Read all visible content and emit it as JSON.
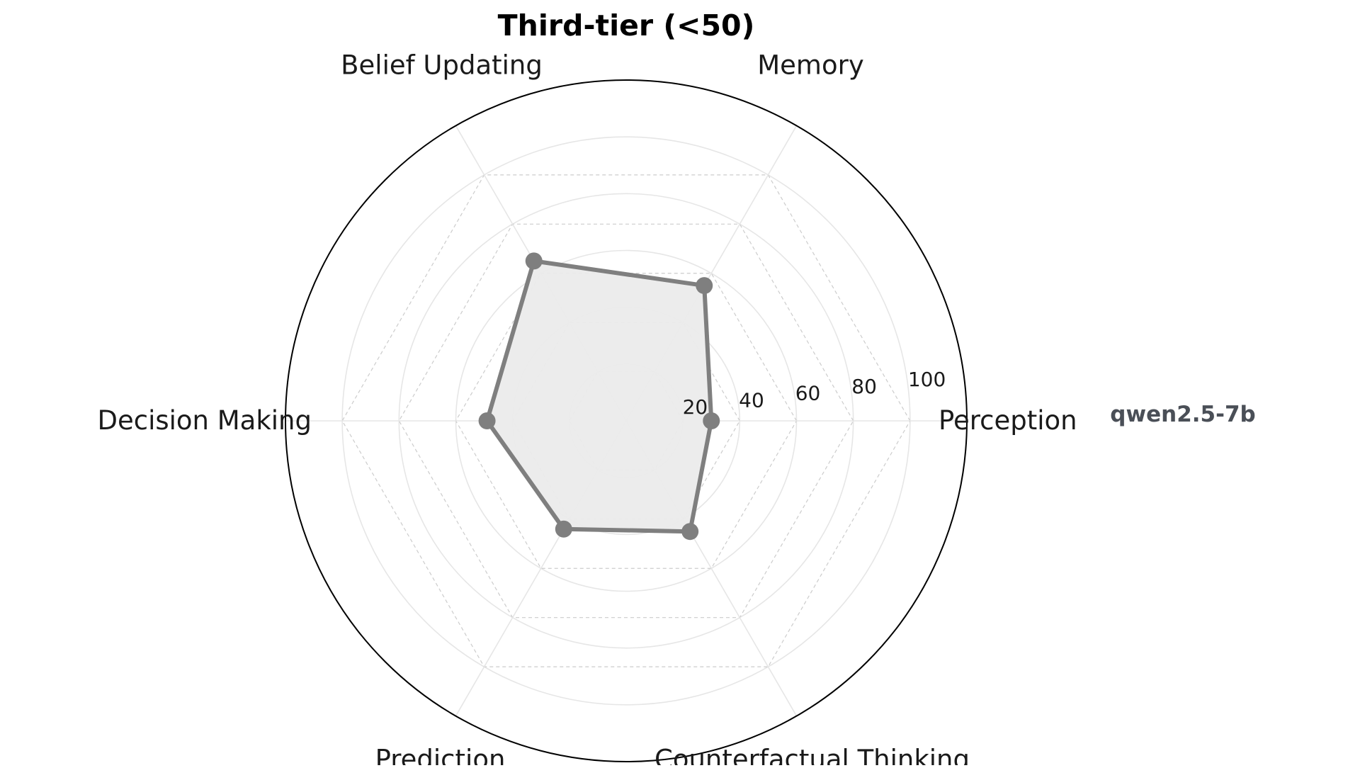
{
  "chart_data": {
    "type": "radar",
    "title": "Third-tier (<50)",
    "axes": [
      "Perception",
      "Memory",
      "Belief Updating",
      "Decision Making",
      "Prediction",
      "Counterfactual Thinking"
    ],
    "rlim": [
      0,
      120
    ],
    "rticks": [
      20,
      40,
      60,
      80,
      100
    ],
    "tick_labels": [
      "20",
      "40",
      "60",
      "80",
      "100"
    ],
    "grid": true,
    "series": [
      {
        "name": "qwen2.5-7b",
        "values": [
          30,
          55,
          65,
          49,
          44,
          45
        ],
        "color": "#7f7f7f",
        "fill_color": "#ebebeb"
      }
    ],
    "legend_placement": "right"
  }
}
